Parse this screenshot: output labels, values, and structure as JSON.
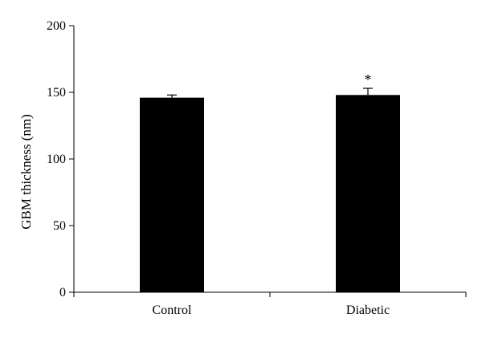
{
  "chart_data": {
    "type": "bar",
    "title": "",
    "xlabel": "",
    "ylabel": "GBM thickness (nm)",
    "categories": [
      "Control",
      "Diabetic"
    ],
    "values": [
      146,
      148
    ],
    "error": [
      2,
      5
    ],
    "annotations": [
      "",
      "*"
    ],
    "ylim": [
      0,
      200
    ],
    "yticks": [
      0,
      50,
      100,
      150,
      200
    ],
    "grid": false,
    "legend": "none",
    "bar_color": "#000000"
  }
}
